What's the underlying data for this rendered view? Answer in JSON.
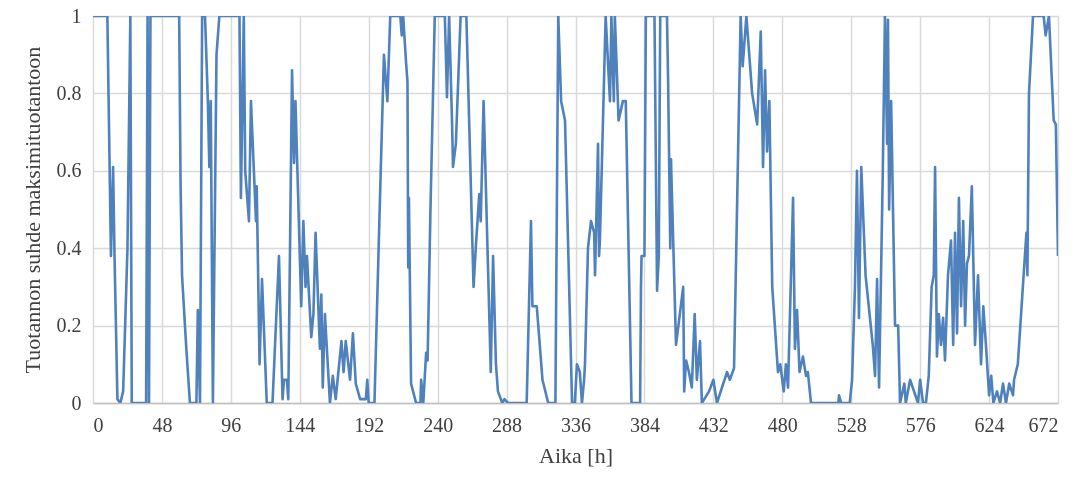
{
  "chart_data": {
    "type": "line",
    "xlabel": "Aika [h]",
    "ylabel": "Tuotannon suhde maksimituotantoon",
    "x": [
      0,
      10,
      12.5,
      14,
      15,
      17,
      19,
      21,
      24,
      26,
      27,
      37,
      38,
      39,
      40,
      41,
      60,
      61,
      62,
      65,
      67.5,
      72,
      73,
      74.5,
      76,
      78,
      80,
      81,
      82,
      83.5,
      86,
      88,
      102,
      103,
      105,
      106,
      108.6,
      110,
      113.5,
      114,
      116,
      117.7,
      121,
      125,
      129.5,
      132,
      133,
      135,
      136,
      138.6,
      140,
      141,
      145,
      146.5,
      148,
      149,
      152,
      153.5,
      155,
      158,
      159,
      160,
      161.5,
      165,
      167,
      169,
      173,
      174.5,
      176,
      179,
      181,
      183,
      186,
      190,
      191,
      192,
      196,
      200,
      202.6,
      205,
      207,
      214,
      215,
      216,
      218,
      219,
      219.5,
      220,
      221.5,
      225,
      228,
      228.5,
      230,
      232,
      233,
      235,
      238,
      245,
      246.5,
      248,
      250,
      250.7,
      252.7,
      256,
      260,
      261,
      265,
      266.7,
      269,
      270,
      272,
      277,
      278.6,
      280.6,
      282,
      285,
      286.5,
      289,
      302,
      305,
      306,
      309,
      310.5,
      313,
      317,
      322,
      324,
      326,
      328.7,
      333.6,
      335.5,
      337,
      339,
      340.5,
      342,
      342.6,
      344.7,
      346.8,
      349,
      349.6,
      351.7,
      352.4,
      353,
      357,
      360,
      361,
      362.7,
      363.4,
      366,
      369,
      371,
      375,
      381,
      381.6,
      382,
      384,
      385,
      391,
      392.8,
      394,
      395,
      399.7,
      400.5,
      402,
      402.5,
      406,
      411,
      411.7,
      413,
      415,
      417,
      419,
      420.5,
      422.7,
      424,
      429,
      432,
      434.5,
      441.5,
      443.5,
      446.4,
      451,
      452.4,
      455,
      459,
      462.5,
      465,
      466.6,
      468,
      469.4,
      471,
      473,
      477,
      478.6,
      481,
      482.5,
      484,
      487.5,
      488.8,
      490.3,
      492,
      494.4,
      496.5,
      497.8,
      500,
      519,
      519.5,
      521,
      527,
      528.6,
      530.6,
      532,
      533.4,
      535,
      538,
      543,
      544.6,
      546,
      547.4,
      550,
      551.5,
      553,
      553.6,
      554.4,
      555.8,
      558.5,
      560.7,
      562,
      565,
      566,
      569,
      574.5,
      576,
      578,
      580,
      582,
      584,
      585.5,
      586.4,
      587.7,
      589,
      590.5,
      592,
      593.3,
      595.4,
      597.5,
      599,
      600.3,
      601.7,
      603,
      604.5,
      606,
      607.3,
      608.6,
      610,
      612,
      614.2,
      616.3,
      618.4,
      620,
      622,
      624,
      625.5,
      627,
      629.5,
      631.7,
      633.7,
      635.8,
      638,
      640.7,
      641.4,
      644,
      650,
      650.7,
      651.8,
      654.6,
      662,
      663.4,
      665.7,
      669,
      670.5,
      672
    ],
    "series": [
      {
        "color": "#4f81bd",
        "values": [
          1,
          1,
          0.38,
          0.61,
          0.38,
          0.01,
          0,
          0.03,
          0.4,
          1,
          0,
          0,
          1,
          0,
          1,
          1,
          1,
          0.56,
          0.33,
          0.14,
          0,
          0,
          0.24,
          0,
          1,
          1,
          0.78,
          0.61,
          0.78,
          0,
          0.9,
          1,
          1,
          0.53,
          1,
          0.6,
          0.47,
          0.78,
          0.47,
          0.56,
          0.1,
          0.32,
          0,
          0,
          0.38,
          0.01,
          0.06,
          0.06,
          0.01,
          0.86,
          0.62,
          0.78,
          0.25,
          0.47,
          0.3,
          0.38,
          0.17,
          0.23,
          0.44,
          0.14,
          0.28,
          0.04,
          0.23,
          0,
          0.07,
          0.01,
          0.16,
          0.08,
          0.16,
          0.06,
          0.18,
          0.05,
          0.01,
          0.01,
          0.06,
          0,
          0,
          0.55,
          0.9,
          0.78,
          1,
          1,
          0.95,
          1,
          0.88,
          0.83,
          0.35,
          0.53,
          0.05,
          0,
          0,
          0.06,
          0,
          0.13,
          0.11,
          0.5,
          1,
          1,
          0.79,
          1,
          0.73,
          0.61,
          0.67,
          1,
          1,
          0.86,
          0.3,
          0.41,
          0.54,
          0.47,
          0.78,
          0.08,
          0.38,
          0.1,
          0.03,
          0,
          0.01,
          0,
          0,
          0.47,
          0.25,
          0.25,
          0.18,
          0.06,
          0,
          0,
          1,
          0.78,
          0.73,
          0,
          0,
          0.1,
          0.08,
          0,
          0.06,
          0.1,
          0.4,
          0.47,
          0.44,
          0.33,
          0.67,
          0.38,
          0.42,
          1,
          0.78,
          1,
          0.78,
          1,
          0.73,
          0.78,
          0.78,
          0,
          0,
          0.3,
          0.38,
          0.38,
          1,
          1,
          0.29,
          0.38,
          1,
          1,
          0.83,
          0.4,
          0.63,
          0.15,
          0.3,
          0.03,
          0.11,
          0.08,
          0.04,
          0.23,
          0.06,
          0.16,
          0,
          0.03,
          0.06,
          0,
          0.08,
          0.06,
          0.09,
          1,
          0.87,
          1,
          0.8,
          0.72,
          0.96,
          0.61,
          0.86,
          0.65,
          0.78,
          0.3,
          0.08,
          0.1,
          0.03,
          0.1,
          0.04,
          0.53,
          0.14,
          0.24,
          0.08,
          0.12,
          0.07,
          0.08,
          0,
          0,
          0.02,
          0,
          0,
          0.06,
          0.3,
          0.6,
          0.22,
          0.61,
          0.33,
          0.15,
          0.07,
          0.32,
          0.04,
          0.6,
          1,
          0.67,
          0.99,
          0.5,
          0.78,
          0.2,
          0.2,
          0,
          0.05,
          0,
          0.06,
          0,
          0.06,
          0,
          0,
          0.07,
          0.3,
          0.33,
          0.61,
          0.12,
          0.23,
          0.15,
          0.22,
          0.11,
          0.33,
          0.42,
          0.15,
          0.44,
          0.18,
          0.53,
          0.25,
          0.47,
          0.2,
          0.36,
          0.38,
          0.56,
          0.15,
          0.33,
          0.1,
          0.25,
          0.14,
          0.02,
          0.07,
          0,
          0.03,
          0,
          0.05,
          0,
          0.05,
          0.02,
          0.06,
          0.1,
          0.44,
          0.33,
          0.8,
          1,
          1,
          0.95,
          1,
          0.73,
          0.72,
          0.38
        ]
      }
    ],
    "xlim": [
      0,
      672
    ],
    "ylim": [
      0,
      1
    ],
    "xticks": [
      0,
      48,
      96,
      144,
      192,
      240,
      288,
      336,
      384,
      432,
      480,
      528,
      576,
      624,
      672
    ],
    "yticks": [
      0,
      0.2,
      0.4,
      0.6,
      0.8,
      1
    ],
    "grid": true
  }
}
